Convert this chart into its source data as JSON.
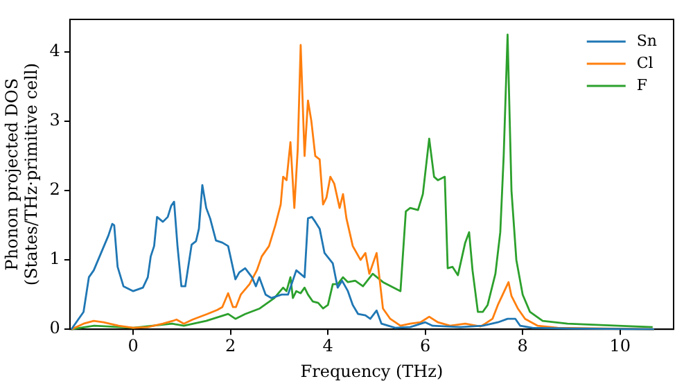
{
  "chart_data": {
    "type": "line",
    "xlabel": "Frequency (THz)",
    "ylabel": "Phonon projected DOS\n(States/THz·primitive cell)",
    "xlim": [
      -1.3,
      11.1
    ],
    "ylim": [
      0,
      4.47
    ],
    "xticks": [
      0,
      2,
      4,
      6,
      8,
      10
    ],
    "yticks": [
      0,
      1,
      2,
      3,
      4
    ],
    "grid": false,
    "legend": "top right",
    "marker": "none",
    "line_style": "solid",
    "series": [
      {
        "name": "Sn",
        "color": "#1f77b4",
        "x": [
          -1.27,
          -1.02,
          -0.91,
          -0.81,
          -0.66,
          -0.51,
          -0.43,
          -0.39,
          -0.32,
          -0.2,
          0,
          0.2,
          0.3,
          0.36,
          0.43,
          0.49,
          0.61,
          0.71,
          0.78,
          0.84,
          0.91,
          0.99,
          1.07,
          1.2,
          1.29,
          1.35,
          1.42,
          1.5,
          1.58,
          1.7,
          1.83,
          1.95,
          2.1,
          2.18,
          2.3,
          2.44,
          2.52,
          2.59,
          2.72,
          2.84,
          3.05,
          3.18,
          3.35,
          3.52,
          3.59,
          3.67,
          3.74,
          3.83,
          3.93,
          4.1,
          4.2,
          4.29,
          4.41,
          4.51,
          4.62,
          4.77,
          4.87,
          5.0,
          5.1,
          5.38,
          5.69,
          6.0,
          6.15,
          6.72,
          7.18,
          7.49,
          7.69,
          7.85,
          7.95,
          8.2,
          9.0,
          10.7
        ],
        "values": [
          0,
          0.25,
          0.75,
          0.85,
          1.1,
          1.35,
          1.52,
          1.5,
          0.9,
          0.62,
          0.55,
          0.6,
          0.75,
          1.05,
          1.2,
          1.62,
          1.55,
          1.62,
          1.78,
          1.84,
          1.2,
          0.62,
          0.62,
          1.22,
          1.27,
          1.45,
          2.08,
          1.75,
          1.6,
          1.28,
          1.25,
          1.2,
          0.72,
          0.82,
          0.88,
          0.75,
          0.62,
          0.75,
          0.5,
          0.45,
          0.5,
          0.5,
          0.85,
          0.75,
          1.6,
          1.62,
          1.55,
          1.45,
          1.1,
          0.95,
          0.6,
          0.7,
          0.55,
          0.35,
          0.22,
          0.2,
          0.15,
          0.27,
          0.08,
          0.02,
          0.03,
          0.1,
          0.05,
          0.03,
          0.05,
          0.1,
          0.15,
          0.15,
          0.05,
          0.02,
          0.01,
          0
        ]
      },
      {
        "name": "Cl",
        "color": "#ff7f0e",
        "x": [
          -1.27,
          -1.02,
          -0.81,
          -0.61,
          -0.3,
          0,
          0.3,
          0.61,
          0.81,
          0.89,
          1.04,
          1.22,
          1.52,
          1.73,
          1.83,
          1.95,
          2.05,
          2.11,
          2.21,
          2.39,
          2.54,
          2.64,
          2.79,
          2.92,
          3.03,
          3.08,
          3.15,
          3.23,
          3.31,
          3.38,
          3.44,
          3.52,
          3.59,
          3.66,
          3.74,
          3.83,
          3.9,
          3.97,
          4.05,
          4.13,
          4.24,
          4.31,
          4.38,
          4.51,
          4.67,
          4.77,
          4.85,
          5.0,
          5.13,
          5.28,
          5.49,
          5.69,
          5.9,
          6.08,
          6.26,
          6.51,
          6.82,
          7.13,
          7.23,
          7.38,
          7.49,
          7.59,
          7.71,
          7.77,
          7.9,
          8.05,
          8.31,
          8.72,
          10.7
        ],
        "values": [
          0,
          0.08,
          0.12,
          0.1,
          0.05,
          0.02,
          0.03,
          0.08,
          0.12,
          0.14,
          0.08,
          0.14,
          0.22,
          0.28,
          0.32,
          0.52,
          0.32,
          0.32,
          0.5,
          0.65,
          0.85,
          1.05,
          1.2,
          1.5,
          1.8,
          2.2,
          2.15,
          2.7,
          1.75,
          2.6,
          4.1,
          2.5,
          3.3,
          3.0,
          2.5,
          2.45,
          1.8,
          1.9,
          2.2,
          2.1,
          1.75,
          1.95,
          1.6,
          1.2,
          1.0,
          1.1,
          0.8,
          1.1,
          0.3,
          0.15,
          0.05,
          0.08,
          0.1,
          0.18,
          0.1,
          0.05,
          0.08,
          0.04,
          0.08,
          0.15,
          0.35,
          0.5,
          0.68,
          0.48,
          0.3,
          0.15,
          0.05,
          0.02,
          0
        ]
      },
      {
        "name": "F",
        "color": "#2ca02c",
        "x": [
          -1.27,
          -0.8,
          0,
          0.8,
          1.04,
          1.5,
          1.95,
          2.1,
          2.3,
          2.6,
          2.9,
          3.08,
          3.15,
          3.23,
          3.28,
          3.35,
          3.44,
          3.52,
          3.59,
          3.69,
          3.8,
          3.9,
          4.0,
          4.1,
          4.2,
          4.31,
          4.41,
          4.56,
          4.72,
          4.92,
          5.13,
          5.49,
          5.6,
          5.69,
          5.85,
          5.95,
          6.08,
          6.18,
          6.26,
          6.4,
          6.46,
          6.56,
          6.67,
          6.82,
          6.9,
          6.97,
          7.08,
          7.18,
          7.28,
          7.44,
          7.54,
          7.61,
          7.69,
          7.77,
          7.87,
          8.0,
          8.15,
          8.41,
          8.92,
          9.95,
          10.67
        ],
        "values": [
          0,
          0.05,
          0.02,
          0.08,
          0.05,
          0.12,
          0.22,
          0.15,
          0.22,
          0.3,
          0.45,
          0.6,
          0.55,
          0.75,
          0.45,
          0.55,
          0.52,
          0.6,
          0.5,
          0.4,
          0.38,
          0.3,
          0.35,
          0.65,
          0.65,
          0.75,
          0.68,
          0.7,
          0.62,
          0.8,
          0.68,
          0.55,
          1.7,
          1.75,
          1.72,
          1.95,
          2.75,
          2.2,
          2.15,
          2.2,
          0.88,
          0.9,
          0.78,
          1.25,
          1.4,
          0.85,
          0.25,
          0.25,
          0.35,
          0.8,
          1.4,
          2.5,
          4.25,
          2.0,
          1.0,
          0.5,
          0.25,
          0.12,
          0.08,
          0.05,
          0.03
        ]
      }
    ]
  }
}
